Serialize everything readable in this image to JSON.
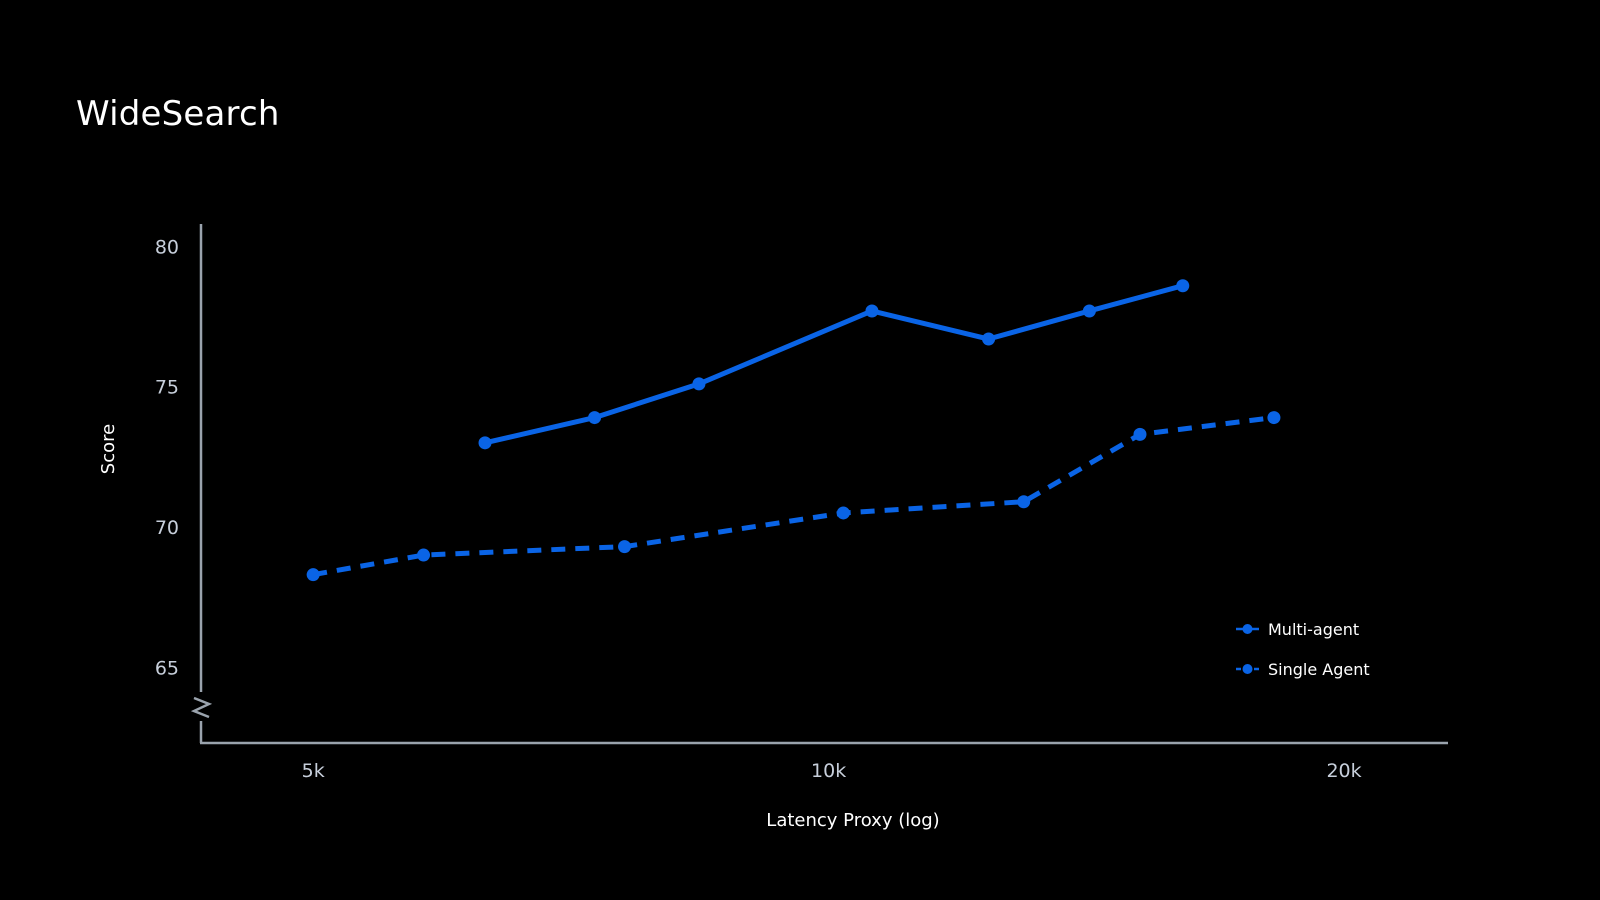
{
  "chart_data": {
    "type": "line",
    "title": "WideSearch",
    "xlabel": "Latency Proxy (log)",
    "ylabel": "Score",
    "x_scale": "log",
    "x_ticks": [
      5000,
      10000,
      20000
    ],
    "x_tick_labels": [
      "5k",
      "10k",
      "20k"
    ],
    "xlim": [
      4300,
      23000
    ],
    "y_ticks": [
      65,
      70,
      75,
      80
    ],
    "y_tick_labels": [
      "65",
      "70",
      "75",
      "80"
    ],
    "ylim": [
      62.3,
      80.8
    ],
    "y_axis_break": true,
    "grid": false,
    "legend_position": "bottom-right",
    "colors": {
      "background": "#000000",
      "series": "#0a64e6",
      "axis": "#9aa3ad",
      "tick_text": "#c7cfdb"
    },
    "series": [
      {
        "name": "Multi-agent",
        "style": "solid",
        "x": [
          6300,
          7300,
          8400,
          10600,
          12400,
          14200,
          16100
        ],
        "y": [
          73.0,
          73.9,
          75.1,
          77.7,
          76.7,
          77.7,
          78.6
        ]
      },
      {
        "name": "Single Agent",
        "style": "dashed",
        "x": [
          5000,
          5800,
          7600,
          10200,
          13000,
          15200,
          18200
        ],
        "y": [
          68.3,
          69.0,
          69.3,
          70.5,
          70.9,
          73.3,
          73.9
        ]
      }
    ]
  }
}
